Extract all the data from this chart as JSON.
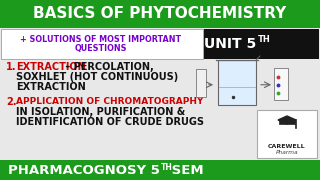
{
  "title": "BASICS OF PHYTOCHEMISTRY",
  "title_bg": "#1c9a1c",
  "title_color": "#ffffff",
  "subtitle_text_line1": "+ SOLUTIONS OF MOST IMPORTANT",
  "subtitle_text_line2": "QUESTIONS",
  "subtitle_color": "#7700cc",
  "subtitle_box_bg": "#ffffff",
  "subtitle_box_border": "#aaaaaa",
  "unit_text": "UNIT 5",
  "unit_sup": "TH",
  "unit_box_bg": "#111111",
  "unit_color": "#ffffff",
  "item1_num": "1.",
  "item1_label": "EXTRACTION",
  "item1_dash": " – PERCOLATION,",
  "item1_line2": "SOXHLET (HOT CONTINUOUS)",
  "item1_line3": "EXTRACTION",
  "item1_label_color": "#cc0000",
  "item1_text_color": "#111111",
  "item2_num": "2.",
  "item2_label": "APPLICATION OF CHROMATOGRAPHY",
  "item2_line2": "IN ISOLATION, PURIFICATION &",
  "item2_line3": "IDENTIFICATION OF CRUDE DRUGS",
  "item2_label_color": "#cc0000",
  "item2_text_color": "#111111",
  "footer_text": "PHARMACOGNOSY 5",
  "footer_sup": "TH",
  "footer_end": " SEM",
  "footer_bg": "#1c9a1c",
  "footer_color": "#ffffff",
  "content_bg": "#e8e8e8",
  "number_color": "#cc0000"
}
